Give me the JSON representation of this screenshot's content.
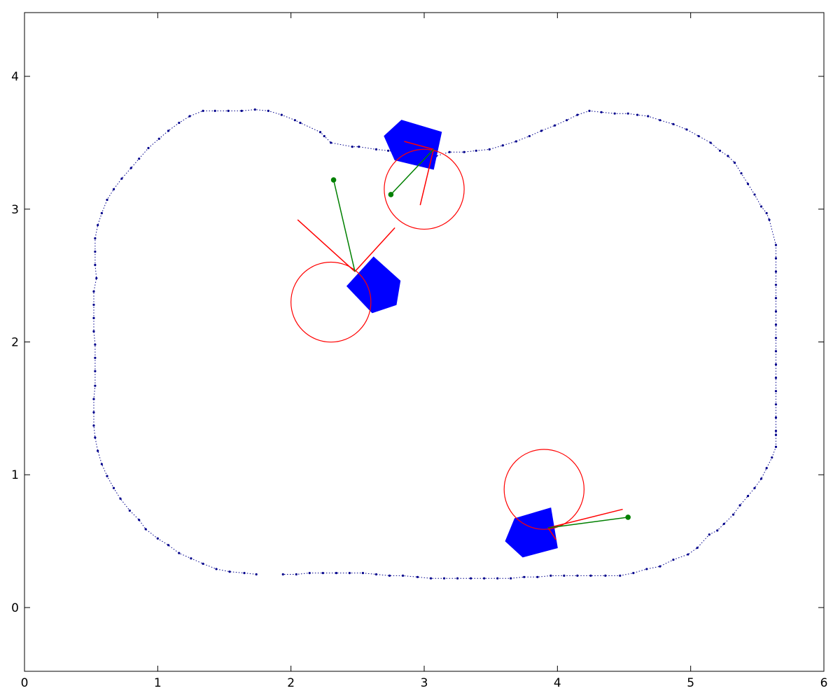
{
  "chart_data": {
    "type": "scatter",
    "title": "",
    "xlabel": "",
    "ylabel": "",
    "xlim": [
      0,
      6
    ],
    "ylim": [
      -0.48,
      4.48
    ],
    "xticks": [
      0,
      1,
      2,
      3,
      4,
      5,
      6
    ],
    "yticks": [
      0,
      1,
      2,
      3,
      4
    ],
    "grid": false,
    "colors": {
      "track": "#00008b",
      "robot": "#0000ff",
      "circle": "#ff0000",
      "red_line": "#ff0000",
      "green_line": "#008000"
    },
    "track": [
      [
        1.74,
        0.25
      ],
      [
        1.65,
        0.26
      ],
      [
        1.54,
        0.27
      ],
      [
        1.44,
        0.29
      ],
      [
        1.34,
        0.33
      ],
      [
        1.25,
        0.37
      ],
      [
        1.16,
        0.41
      ],
      [
        1.08,
        0.47
      ],
      [
        1.0,
        0.52
      ],
      [
        0.91,
        0.59
      ],
      [
        0.86,
        0.66
      ],
      [
        0.79,
        0.73
      ],
      [
        0.72,
        0.82
      ],
      [
        0.67,
        0.9
      ],
      [
        0.62,
        0.99
      ],
      [
        0.58,
        1.08
      ],
      [
        0.55,
        1.18
      ],
      [
        0.53,
        1.28
      ],
      [
        0.52,
        1.37
      ],
      [
        0.52,
        1.47
      ],
      [
        0.52,
        1.57
      ],
      [
        0.53,
        1.67
      ],
      [
        0.53,
        1.78
      ],
      [
        0.53,
        1.88
      ],
      [
        0.53,
        1.98
      ],
      [
        0.52,
        2.08
      ],
      [
        0.52,
        2.18
      ],
      [
        0.52,
        2.28
      ],
      [
        0.52,
        2.38
      ],
      [
        0.54,
        2.48
      ],
      [
        0.53,
        2.58
      ],
      [
        0.53,
        2.68
      ],
      [
        0.53,
        2.78
      ],
      [
        0.55,
        2.88
      ],
      [
        0.58,
        2.97
      ],
      [
        0.62,
        3.07
      ],
      [
        0.67,
        3.15
      ],
      [
        0.73,
        3.23
      ],
      [
        0.8,
        3.31
      ],
      [
        0.86,
        3.38
      ],
      [
        0.93,
        3.46
      ],
      [
        1.01,
        3.53
      ],
      [
        1.08,
        3.59
      ],
      [
        1.16,
        3.65
      ],
      [
        1.24,
        3.7
      ],
      [
        1.34,
        3.74
      ],
      [
        1.43,
        3.74
      ],
      [
        1.53,
        3.74
      ],
      [
        1.63,
        3.74
      ],
      [
        1.73,
        3.75
      ],
      [
        1.83,
        3.74
      ],
      [
        1.93,
        3.71
      ],
      [
        2.03,
        3.67
      ],
      [
        2.07,
        3.65
      ],
      [
        2.22,
        3.58
      ],
      [
        2.25,
        3.55
      ],
      [
        2.3,
        3.5
      ],
      [
        2.46,
        3.47
      ],
      [
        2.51,
        3.47
      ],
      [
        2.64,
        3.45
      ],
      [
        2.73,
        3.44
      ],
      [
        2.84,
        3.43
      ],
      [
        2.92,
        3.42
      ],
      [
        3.02,
        3.41
      ],
      [
        3.09,
        3.4
      ],
      [
        3.19,
        3.43
      ],
      [
        3.3,
        3.43
      ],
      [
        3.39,
        3.44
      ],
      [
        3.49,
        3.45
      ],
      [
        3.59,
        3.48
      ],
      [
        3.69,
        3.51
      ],
      [
        3.79,
        3.55
      ],
      [
        3.88,
        3.59
      ],
      [
        3.98,
        3.63
      ],
      [
        4.07,
        3.67
      ],
      [
        4.15,
        3.71
      ],
      [
        4.24,
        3.74
      ],
      [
        4.33,
        3.73
      ],
      [
        4.43,
        3.72
      ],
      [
        4.53,
        3.72
      ],
      [
        4.6,
        3.71
      ],
      [
        4.68,
        3.7
      ],
      [
        4.77,
        3.67
      ],
      [
        4.87,
        3.64
      ],
      [
        4.97,
        3.6
      ],
      [
        5.06,
        3.55
      ],
      [
        5.15,
        3.5
      ],
      [
        5.22,
        3.44
      ],
      [
        5.28,
        3.4
      ],
      [
        5.33,
        3.35
      ],
      [
        5.38,
        3.27
      ],
      [
        5.43,
        3.19
      ],
      [
        5.48,
        3.11
      ],
      [
        5.53,
        3.02
      ],
      [
        5.57,
        2.97
      ],
      [
        5.59,
        2.92
      ],
      [
        5.64,
        2.73
      ],
      [
        5.64,
        2.63
      ],
      [
        5.64,
        2.53
      ],
      [
        5.64,
        2.43
      ],
      [
        5.64,
        2.33
      ],
      [
        5.64,
        2.23
      ],
      [
        5.64,
        2.13
      ],
      [
        5.64,
        2.03
      ],
      [
        5.64,
        1.93
      ],
      [
        5.64,
        1.83
      ],
      [
        5.64,
        1.73
      ],
      [
        5.64,
        1.63
      ],
      [
        5.64,
        1.53
      ],
      [
        5.64,
        1.43
      ],
      [
        5.64,
        1.33
      ],
      [
        5.64,
        1.3
      ],
      [
        5.64,
        1.21
      ],
      [
        5.61,
        1.13
      ],
      [
        5.57,
        1.05
      ],
      [
        5.53,
        0.97
      ],
      [
        5.48,
        0.9
      ],
      [
        5.43,
        0.84
      ],
      [
        5.37,
        0.77
      ],
      [
        5.32,
        0.7
      ],
      [
        5.25,
        0.63
      ],
      [
        5.2,
        0.58
      ],
      [
        5.14,
        0.55
      ],
      [
        5.05,
        0.45
      ],
      [
        4.98,
        0.4
      ],
      [
        4.87,
        0.36
      ],
      [
        4.77,
        0.31
      ],
      [
        4.67,
        0.29
      ],
      [
        4.57,
        0.26
      ],
      [
        4.47,
        0.24
      ],
      [
        4.36,
        0.24
      ],
      [
        4.25,
        0.24
      ],
      [
        4.15,
        0.24
      ],
      [
        4.05,
        0.24
      ],
      [
        3.95,
        0.24
      ],
      [
        3.85,
        0.23
      ],
      [
        3.75,
        0.23
      ],
      [
        3.65,
        0.22
      ],
      [
        3.55,
        0.22
      ],
      [
        3.45,
        0.22
      ],
      [
        3.35,
        0.22
      ],
      [
        3.25,
        0.22
      ],
      [
        3.15,
        0.22
      ],
      [
        3.05,
        0.22
      ],
      [
        2.95,
        0.23
      ],
      [
        2.84,
        0.24
      ],
      [
        2.74,
        0.24
      ],
      [
        2.64,
        0.25
      ],
      [
        2.54,
        0.26
      ],
      [
        2.44,
        0.26
      ],
      [
        2.34,
        0.26
      ],
      [
        2.24,
        0.26
      ],
      [
        2.14,
        0.26
      ],
      [
        2.04,
        0.25
      ],
      [
        1.94,
        0.25
      ]
    ],
    "robots": [
      {
        "polygon": [
          [
            2.42,
            2.42
          ],
          [
            2.62,
            2.64
          ],
          [
            2.82,
            2.46
          ],
          [
            2.79,
            2.28
          ],
          [
            2.61,
            2.22
          ]
        ],
        "circle": {
          "x": 2.3,
          "y": 2.3,
          "r": 0.3
        },
        "red_lines": [
          [
            [
              2.48,
              2.53
            ],
            [
              2.05,
              2.92
            ]
          ],
          [
            [
              2.48,
              2.53
            ],
            [
              2.78,
              2.86
            ]
          ]
        ],
        "green_line": [
          [
            2.48,
            2.53
          ],
          [
            2.32,
            3.22
          ]
        ],
        "green_dot": [
          2.32,
          3.22
        ]
      },
      {
        "polygon": [
          [
            2.7,
            3.55
          ],
          [
            2.83,
            3.67
          ],
          [
            3.13,
            3.58
          ],
          [
            3.07,
            3.3
          ],
          [
            2.78,
            3.37
          ]
        ],
        "circle": {
          "x": 3.0,
          "y": 3.15,
          "r": 0.3
        },
        "red_lines": [
          [
            [
              2.85,
              3.51
            ],
            [
              3.07,
              3.45
            ]
          ],
          [
            [
              3.07,
              3.45
            ],
            [
              2.97,
              3.03
            ]
          ]
        ],
        "green_line": [
          [
            3.07,
            3.45
          ],
          [
            2.75,
            3.11
          ]
        ],
        "green_dot": [
          2.75,
          3.11
        ]
      },
      {
        "polygon": [
          [
            3.61,
            0.5
          ],
          [
            3.68,
            0.67
          ],
          [
            3.95,
            0.75
          ],
          [
            4.0,
            0.45
          ],
          [
            3.74,
            0.38
          ]
        ],
        "circle": {
          "x": 3.9,
          "y": 0.89,
          "r": 0.3
        },
        "red_lines": [
          [
            [
              3.93,
              0.6
            ],
            [
              4.49,
              0.74
            ]
          ],
          [
            [
              3.93,
              0.6
            ],
            [
              3.99,
              0.51
            ]
          ]
        ],
        "green_line": [
          [
            3.93,
            0.6
          ],
          [
            4.53,
            0.68
          ]
        ],
        "green_dot": [
          4.53,
          0.68
        ]
      }
    ]
  }
}
